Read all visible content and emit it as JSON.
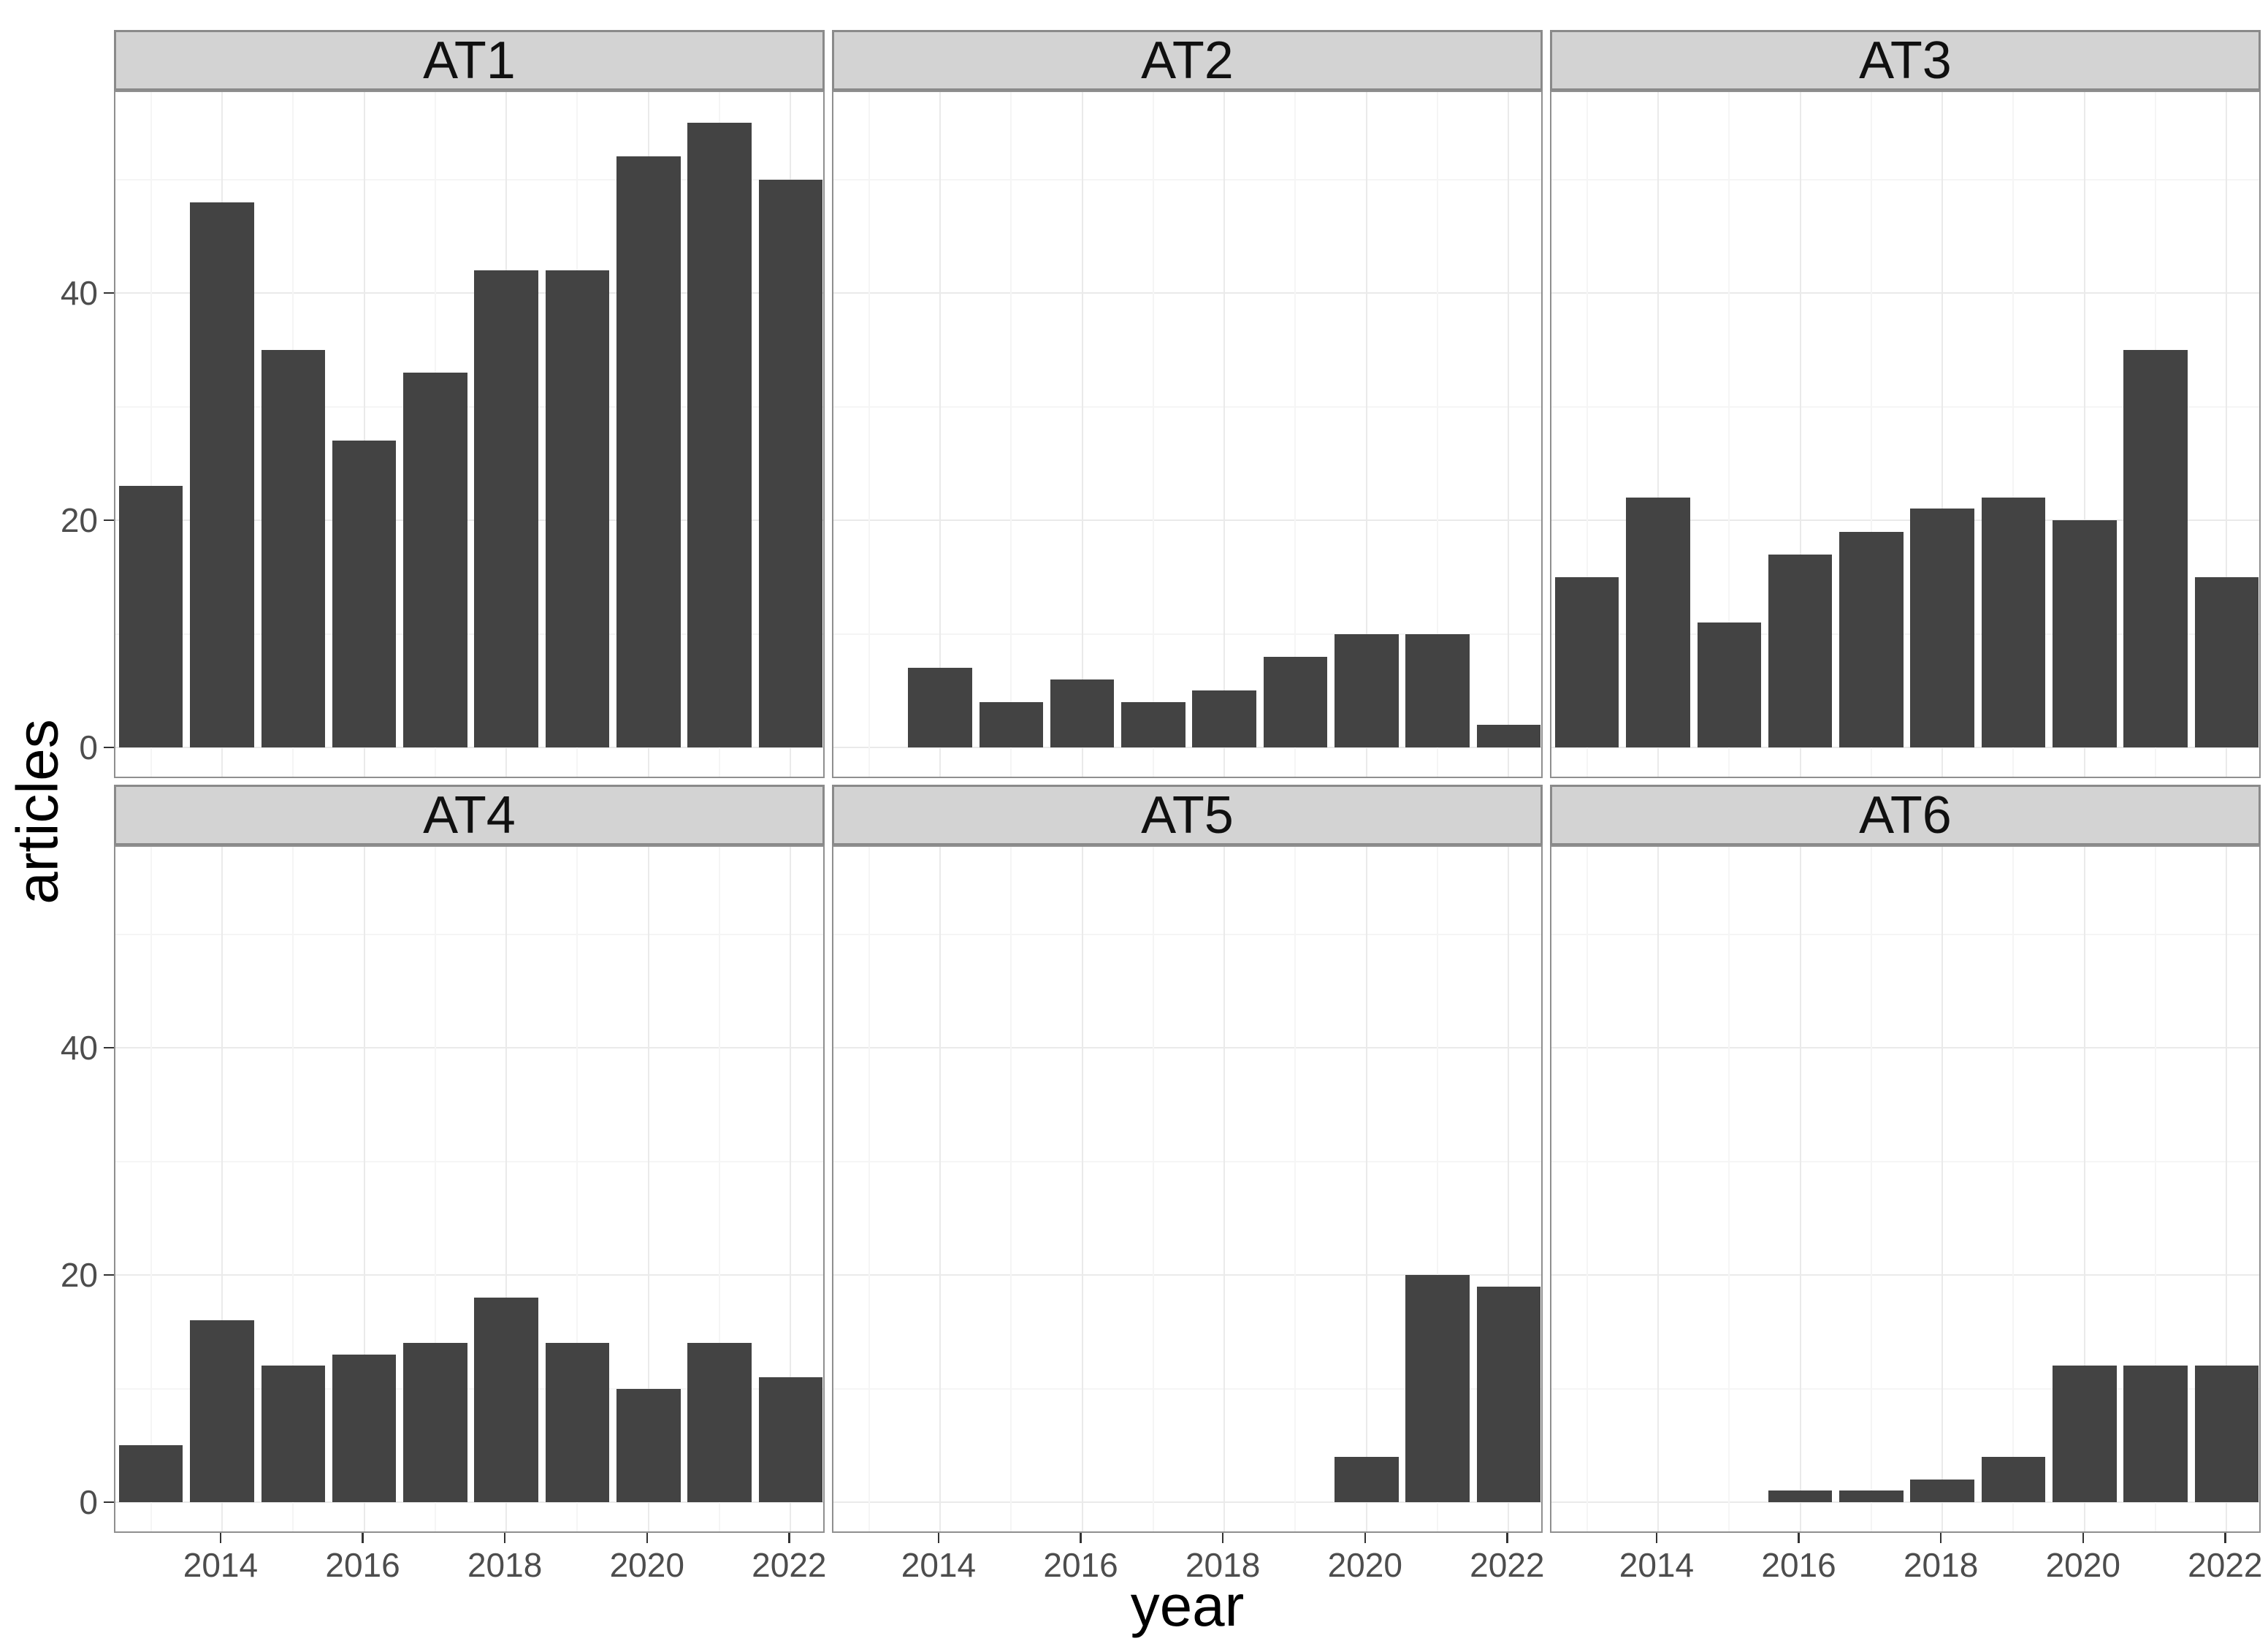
{
  "chart_data": {
    "type": "bar",
    "faceted": true,
    "title": "",
    "xlabel": "year",
    "ylabel": "articles",
    "x_ticks": [
      "2014",
      "2016",
      "2018",
      "2020",
      "2022"
    ],
    "x_tick_years": [
      2014,
      2016,
      2018,
      2020,
      2022
    ],
    "x_minor_years": [
      2013,
      2015,
      2017,
      2019,
      2021
    ],
    "y_ticks": [
      "0",
      "20",
      "40"
    ],
    "y_tick_values": [
      0,
      20,
      40
    ],
    "y_minor_values": [
      10,
      30,
      50
    ],
    "x_range": [
      2012.5,
      2022.5
    ],
    "ylim": [
      0,
      57.8
    ],
    "grid": true,
    "legend": "none",
    "facets": [
      {
        "title": "AT1",
        "years": [
          2013,
          2014,
          2015,
          2016,
          2017,
          2018,
          2019,
          2020,
          2021,
          2022
        ],
        "values": [
          23,
          48,
          35,
          27,
          33,
          42,
          42,
          52,
          55,
          50
        ]
      },
      {
        "title": "AT2",
        "years": [
          2014,
          2015,
          2016,
          2017,
          2018,
          2019,
          2020,
          2021,
          2022
        ],
        "values": [
          7,
          4,
          6,
          4,
          5,
          8,
          10,
          10,
          2
        ]
      },
      {
        "title": "AT3",
        "years": [
          2013,
          2014,
          2015,
          2016,
          2017,
          2018,
          2019,
          2020,
          2021,
          2022
        ],
        "values": [
          15,
          22,
          11,
          17,
          19,
          21,
          22,
          20,
          35,
          15
        ]
      },
      {
        "title": "AT4",
        "years": [
          2013,
          2014,
          2015,
          2016,
          2017,
          2018,
          2019,
          2020,
          2021,
          2022
        ],
        "values": [
          5,
          16,
          12,
          13,
          14,
          18,
          14,
          10,
          14,
          11
        ]
      },
      {
        "title": "AT5",
        "years": [
          2020,
          2021,
          2022
        ],
        "values": [
          4,
          20,
          19
        ]
      },
      {
        "title": "AT6",
        "years": [
          2016,
          2017,
          2018,
          2019,
          2020,
          2021,
          2022
        ],
        "values": [
          1,
          1,
          2,
          4,
          12,
          12,
          12
        ]
      }
    ]
  },
  "style": {
    "bar_fill": "#434343",
    "strip_bg": "#d3d3d3",
    "strip_border": "#8a8a8a",
    "panel_border": "#8f8f8f",
    "grid_major": "#eaeaea",
    "grid_minor": "#f5f5f5",
    "tick_mark_color": "#333333",
    "tick_label_color": "#4d4d4d",
    "axis_title_color": "#000000"
  }
}
